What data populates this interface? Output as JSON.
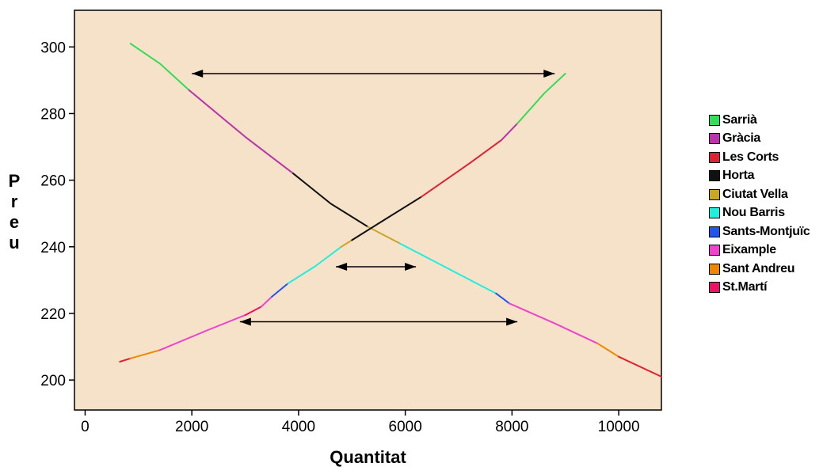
{
  "chart_data": {
    "type": "line",
    "xlabel": "Quantitat",
    "ylabel": "Preu",
    "xlim": [
      -200,
      10800
    ],
    "ylim": [
      191,
      311
    ],
    "xticks": [
      0,
      2000,
      4000,
      6000,
      8000,
      10000
    ],
    "yticks": [
      200,
      220,
      240,
      260,
      280,
      300
    ],
    "background": "#f5e2c8",
    "legend_position": "right",
    "series": [
      {
        "role": "demand",
        "segments": [
          {
            "district": "Sarrià",
            "points": [
              [
                850,
                301
              ],
              [
                1400,
                295
              ],
              [
                1950,
                287
              ]
            ]
          },
          {
            "district": "Gràcia",
            "points": [
              [
                1950,
                287
              ],
              [
                3000,
                273
              ],
              [
                3900,
                262
              ]
            ]
          },
          {
            "district": "Horta",
            "points": [
              [
                3900,
                262
              ],
              [
                4600,
                253
              ],
              [
                5300,
                246
              ]
            ]
          },
          {
            "district": "Ciutat Vella",
            "points": [
              [
                5300,
                246
              ],
              [
                5900,
                241
              ]
            ]
          },
          {
            "district": "Nou Barris",
            "points": [
              [
                5900,
                241
              ],
              [
                6500,
                236
              ],
              [
                7100,
                231
              ],
              [
                7700,
                226
              ]
            ]
          },
          {
            "district": "Sants-Montjuïc",
            "points": [
              [
                7700,
                226
              ],
              [
                7950,
                223
              ]
            ]
          },
          {
            "district": "Eixample",
            "points": [
              [
                7950,
                223
              ],
              [
                8800,
                217
              ],
              [
                9600,
                211
              ]
            ]
          },
          {
            "district": "Sant Andreu",
            "points": [
              [
                9600,
                211
              ],
              [
                10000,
                207
              ]
            ]
          },
          {
            "district": "Les Corts",
            "points": [
              [
                10000,
                207
              ],
              [
                10800,
                201
              ]
            ]
          }
        ]
      },
      {
        "role": "supply",
        "segments": [
          {
            "district": "Les Corts",
            "points": [
              [
                650,
                205.5
              ],
              [
                850,
                206.5
              ]
            ]
          },
          {
            "district": "Sant Andreu",
            "points": [
              [
                850,
                206.5
              ],
              [
                1400,
                209
              ]
            ]
          },
          {
            "district": "Eixample",
            "points": [
              [
                1400,
                209
              ],
              [
                2300,
                215
              ],
              [
                3000,
                219.5
              ]
            ]
          },
          {
            "district": "St.Martí",
            "points": [
              [
                3000,
                219.5
              ],
              [
                3300,
                222
              ]
            ]
          },
          {
            "district": "Eixample",
            "points": [
              [
                3300,
                222
              ],
              [
                3500,
                225
              ]
            ]
          },
          {
            "district": "Sants-Montjuïc",
            "points": [
              [
                3500,
                225
              ],
              [
                3800,
                229
              ]
            ]
          },
          {
            "district": "Nou Barris",
            "points": [
              [
                3800,
                229
              ],
              [
                4300,
                234
              ],
              [
                4800,
                240
              ]
            ]
          },
          {
            "district": "Ciutat Vella",
            "points": [
              [
                4800,
                240
              ],
              [
                5000,
                242
              ]
            ]
          },
          {
            "district": "Horta",
            "points": [
              [
                5000,
                242
              ],
              [
                5700,
                249
              ],
              [
                6300,
                255
              ]
            ]
          },
          {
            "district": "Les Corts",
            "points": [
              [
                6300,
                255
              ],
              [
                7200,
                265
              ],
              [
                7800,
                272
              ]
            ]
          },
          {
            "district": "Gràcia",
            "points": [
              [
                7800,
                272
              ],
              [
                8100,
                277
              ]
            ]
          },
          {
            "district": "Sarrià",
            "points": [
              [
                8100,
                277
              ],
              [
                8600,
                286
              ],
              [
                9000,
                292
              ]
            ]
          }
        ]
      }
    ],
    "annotations": [
      {
        "type": "double-arrow",
        "x": [
          2000,
          8800
        ],
        "y": 292
      },
      {
        "type": "double-arrow",
        "x": [
          4700,
          6200
        ],
        "y": 234
      },
      {
        "type": "double-arrow",
        "x": [
          2900,
          8100
        ],
        "y": 217.5
      }
    ]
  },
  "legend": [
    {
      "label": "Sarrià",
      "color": "#33dd55"
    },
    {
      "label": "Gràcia",
      "color": "#bb33aa"
    },
    {
      "label": "Les Corts",
      "color": "#dd2233"
    },
    {
      "label": "Horta",
      "color": "#111111"
    },
    {
      "label": "Ciutat Vella",
      "color": "#c9a528"
    },
    {
      "label": "Nou Barris",
      "color": "#22eedd"
    },
    {
      "label": "Sants-Montjuïc",
      "color": "#2255ee"
    },
    {
      "label": "Eixample",
      "color": "#ee44cc"
    },
    {
      "label": "Sant Andreu",
      "color": "#ee8800"
    },
    {
      "label": "St.Martí",
      "color": "#ee1166"
    }
  ]
}
